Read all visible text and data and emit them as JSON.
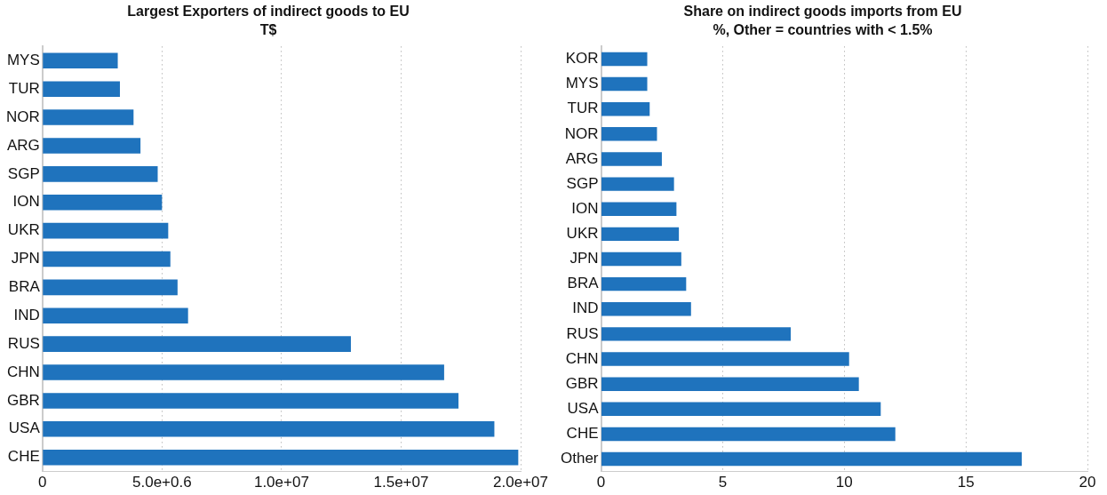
{
  "chart_data": [
    {
      "type": "bar",
      "orientation": "horizontal",
      "title": "Largest Exporters of indirect goods to EU",
      "subtitle": "T$",
      "categories": [
        "MYS",
        "TUR",
        "NOR",
        "ARG",
        "SGP",
        "ION",
        "UKR",
        "JPN",
        "BRA",
        "IND",
        "RUS",
        "CHN",
        "GBR",
        "USA",
        "CHE"
      ],
      "values": [
        3150000,
        3240000,
        3810000,
        4100000,
        4820000,
        5000000,
        5260000,
        5350000,
        5650000,
        6090000,
        12900000,
        16800000,
        17400000,
        18900000,
        19900000
      ],
      "color": "#1f73bd",
      "xlim": [
        0,
        20000000
      ],
      "xticks": [
        0,
        {
          "value": 5000000,
          "label": "5.0e+0.6"
        },
        {
          "value": 10000000,
          "label": "1.0e+07"
        },
        {
          "value": 15000000,
          "label": "1.5e+07"
        },
        {
          "value": 20000000,
          "label": "2.0e+07"
        }
      ],
      "grid": "x",
      "legend": false
    },
    {
      "type": "bar",
      "orientation": "horizontal",
      "title": "Share on indirect goods imports from EU",
      "subtitle": "%, Other = countries with < 1.5%",
      "categories": [
        "KOR",
        "MYS",
        "TUR",
        "NOR",
        "ARG",
        "SGP",
        "ION",
        "UKR",
        "JPN",
        "BRA",
        "IND",
        "RUS",
        "CHN",
        "GBR",
        "USA",
        "CHE",
        "Other"
      ],
      "values": [
        1.9,
        1.9,
        2.0,
        2.3,
        2.5,
        3.0,
        3.1,
        3.2,
        3.3,
        3.5,
        3.7,
        7.8,
        10.2,
        10.6,
        11.5,
        12.1,
        17.3
      ],
      "color": "#1f73bd",
      "xlim": [
        0,
        20
      ],
      "xticks": [
        0,
        5,
        10,
        15,
        20
      ],
      "grid": "x",
      "legend": false
    }
  ]
}
